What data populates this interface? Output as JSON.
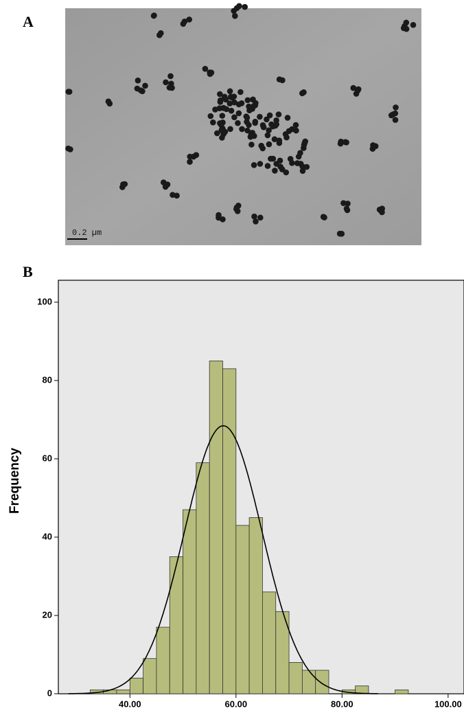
{
  "figure": {
    "panel_a_label": "A",
    "scale_bar": "0.2 µm",
    "panel_b_label": "B"
  },
  "chart_data": {
    "type": "histogram",
    "y_label": "Frequency",
    "bins": [
      32.5,
      35,
      37.5,
      40,
      42.5,
      45,
      47.5,
      50,
      52.5,
      55,
      57.5,
      60,
      62.5,
      65,
      67.5,
      70,
      72.5,
      75,
      77.5,
      80,
      82.5,
      85,
      87.5,
      90,
      92.5
    ],
    "values": [
      1,
      1,
      1,
      4,
      9,
      17,
      35,
      47,
      59,
      85,
      83,
      43,
      45,
      26,
      21,
      8,
      6,
      6,
      0,
      1,
      2,
      0,
      0,
      1
    ],
    "color": "#b6bd7c",
    "fit": {
      "type": "normal",
      "mean": 57.6,
      "sd": 7.3,
      "color": "#000000"
    },
    "xlim": [
      26.5,
      103
    ],
    "ylim": [
      0,
      105.6
    ],
    "xticks": [
      {
        "value": 40,
        "label": "40.00"
      },
      {
        "value": 60,
        "label": "60.00"
      },
      {
        "value": 80,
        "label": "80.00"
      },
      {
        "value": 100,
        "label": "100.00"
      }
    ],
    "yticks": [
      0,
      20,
      40,
      60,
      80,
      100
    ],
    "background": "#e8e8e8"
  }
}
